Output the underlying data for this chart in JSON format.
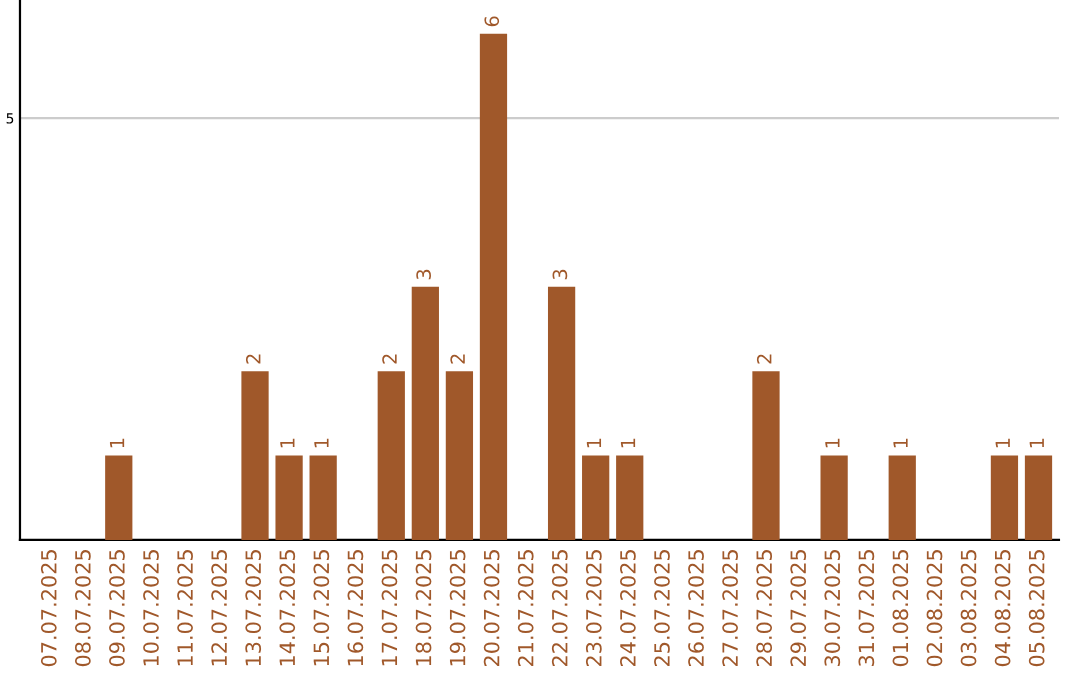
{
  "chart_data": {
    "type": "bar",
    "categories": [
      "07.07.2025",
      "08.07.2025",
      "09.07.2025",
      "10.07.2025",
      "11.07.2025",
      "12.07.2025",
      "13.07.2025",
      "14.07.2025",
      "15.07.2025",
      "16.07.2025",
      "17.07.2025",
      "18.07.2025",
      "19.07.2025",
      "20.07.2025",
      "21.07.2025",
      "22.07.2025",
      "23.07.2025",
      "24.07.2025",
      "25.07.2025",
      "26.07.2025",
      "27.07.2025",
      "28.07.2025",
      "29.07.2025",
      "30.07.2025",
      "31.07.2025",
      "01.08.2025",
      "02.08.2025",
      "03.08.2025",
      "04.08.2025",
      "05.08.2025"
    ],
    "values": [
      0,
      0,
      1,
      0,
      0,
      0,
      2,
      1,
      1,
      0,
      2,
      3,
      2,
      6,
      0,
      3,
      1,
      1,
      0,
      0,
      0,
      2,
      0,
      1,
      0,
      1,
      0,
      0,
      1,
      1
    ],
    "value_labels": [
      null,
      null,
      "1",
      null,
      null,
      null,
      "2",
      "1",
      "1",
      null,
      "2",
      "3",
      "2",
      "6",
      null,
      "3",
      "1",
      "1",
      null,
      null,
      null,
      "2",
      null,
      "1",
      null,
      "1",
      null,
      null,
      "1",
      "1"
    ],
    "color": "#a0582a",
    "ylim": [
      0,
      6.4
    ],
    "yticks": [
      5
    ],
    "grid": "y"
  }
}
